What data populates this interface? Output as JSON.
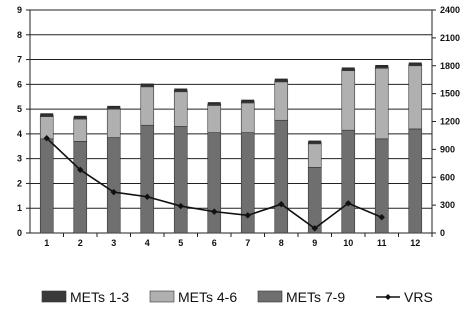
{
  "chart_data": {
    "type": "bar",
    "stacked": true,
    "categories": [
      "1",
      "2",
      "3",
      "4",
      "5",
      "6",
      "7",
      "8",
      "9",
      "10",
      "11",
      "12"
    ],
    "series": [
      {
        "name": "METs 7-9",
        "values": [
          3.8,
          3.7,
          3.85,
          4.35,
          4.3,
          4.05,
          4.05,
          4.55,
          2.65,
          4.15,
          3.8,
          4.2
        ],
        "color": "#6f6f6f",
        "axis": "left"
      },
      {
        "name": "METs 4-6",
        "values": [
          0.9,
          0.9,
          1.15,
          1.55,
          1.4,
          1.1,
          1.2,
          1.55,
          0.95,
          2.4,
          2.85,
          2.55
        ],
        "color": "#b0b0b0",
        "axis": "left"
      },
      {
        "name": "METs 1-3",
        "values": [
          0.05,
          0.05,
          0.05,
          0.05,
          0.05,
          0.05,
          0.05,
          0.05,
          0.05,
          0.05,
          0.05,
          0.05
        ],
        "color": "#3a3a3a",
        "axis": "left"
      },
      {
        "name": "VRS",
        "type": "line",
        "values": [
          1020,
          680,
          440,
          390,
          290,
          230,
          190,
          310,
          50,
          320,
          170,
          null
        ],
        "color": "#111111",
        "axis": "right"
      }
    ],
    "left_axis": {
      "min": 0,
      "max": 9,
      "ticks": [
        "0",
        "1",
        "2",
        "3",
        "4",
        "5",
        "6",
        "7",
        "8",
        "9"
      ]
    },
    "right_axis": {
      "min": 0,
      "max": 2400,
      "ticks": [
        "0",
        "300",
        "600",
        "900",
        "1200",
        "1500",
        "1800",
        "2100",
        "2400"
      ]
    },
    "grid": true,
    "legend": "bottom",
    "legend_items": [
      "METs 1-3",
      "METs 4-6",
      "METs 7-9",
      "VRS"
    ]
  }
}
